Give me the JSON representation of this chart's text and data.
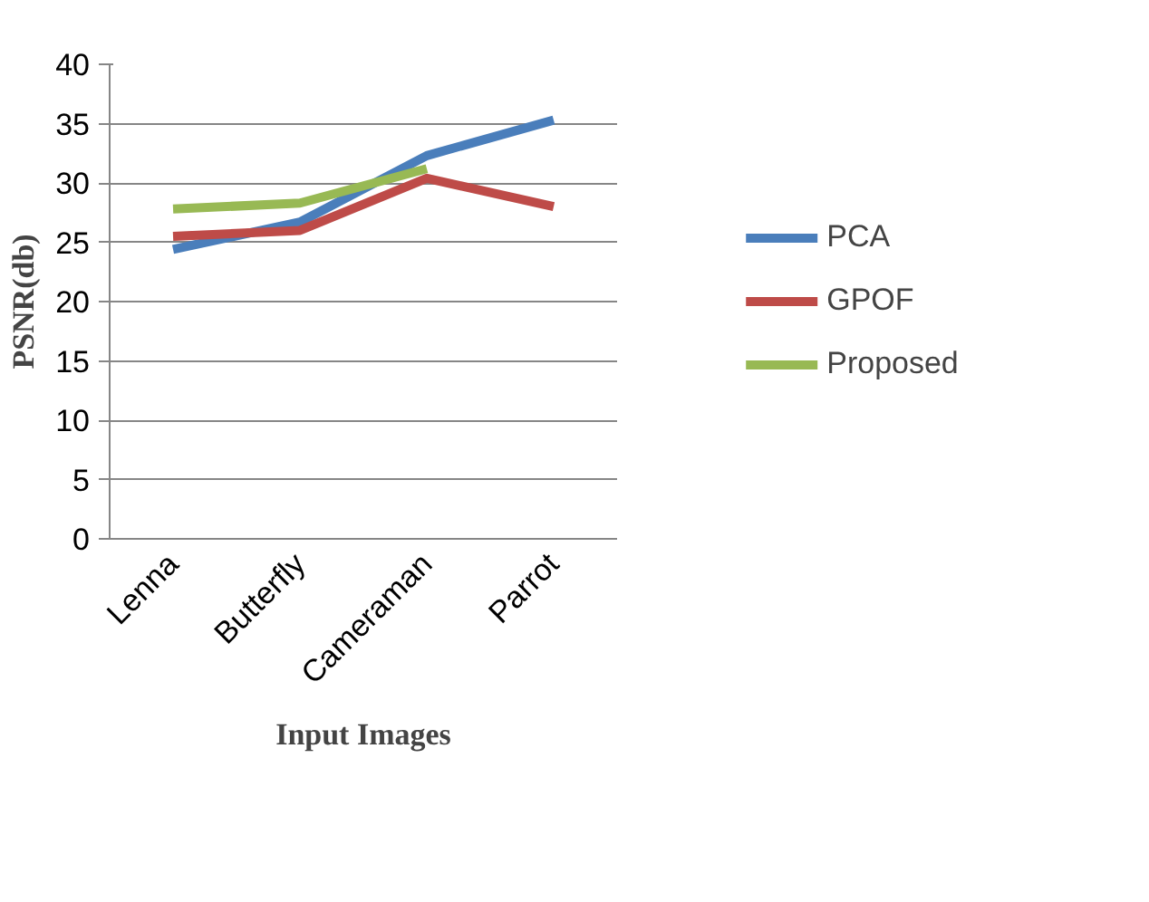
{
  "chart_data": {
    "type": "line",
    "xlabel": "Input Images",
    "ylabel": "PSNR(db)",
    "categories": [
      "Lenna",
      "Butterfly",
      "Cameraman",
      "Parrot"
    ],
    "series": [
      {
        "name": "PCA",
        "color": "#4a7ebb",
        "values": [
          24.4,
          26.7,
          32.3,
          35.3
        ]
      },
      {
        "name": "GPOF",
        "color": "#be4b48",
        "values": [
          25.5,
          26.0,
          30.4,
          28.0
        ]
      },
      {
        "name": "Proposed",
        "color": "#98b954",
        "values": [
          27.8,
          28.3,
          31.2,
          null
        ]
      }
    ],
    "ylim": [
      0,
      40
    ],
    "yticks": [
      0,
      5,
      10,
      15,
      20,
      25,
      30,
      35,
      40
    ],
    "grid": "y",
    "legend": "right",
    "marker": "none",
    "line_style": "solid"
  }
}
